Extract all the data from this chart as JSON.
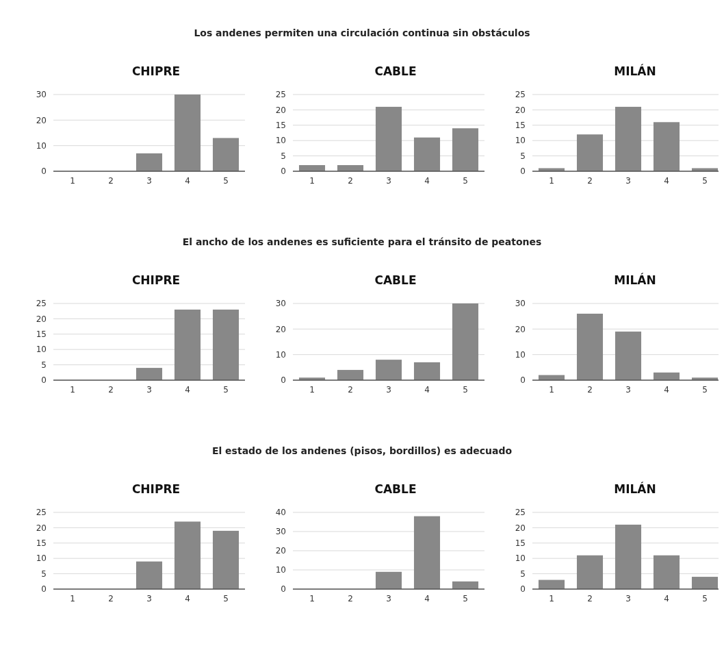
{
  "chart_data": [
    {
      "type": "bar",
      "title": "CHIPRE",
      "annotations": [
        "Los andenes permiten una circulación continua sin obstáculos"
      ],
      "categories": [
        "1",
        "2",
        "3",
        "4",
        "5"
      ],
      "values": [
        0,
        0,
        7,
        30,
        13
      ],
      "color": "#888888",
      "ylim": [
        0,
        30
      ],
      "yticks": [
        0,
        10,
        20,
        30
      ],
      "grid": "y"
    },
    {
      "type": "bar",
      "title": "CABLE",
      "categories": [
        "1",
        "2",
        "3",
        "4",
        "5"
      ],
      "values": [
        2,
        2,
        21,
        11,
        14
      ],
      "color": "#888888",
      "ylim": [
        0,
        25
      ],
      "yticks": [
        0,
        5,
        10,
        15,
        20,
        25
      ],
      "grid": "y"
    },
    {
      "type": "bar",
      "title": "MILÁN",
      "categories": [
        "1",
        "2",
        "3",
        "4",
        "5"
      ],
      "values": [
        1,
        12,
        21,
        16,
        1
      ],
      "color": "#888888",
      "ylim": [
        0,
        25
      ],
      "yticks": [
        0,
        5,
        10,
        15,
        20,
        25
      ],
      "grid": "y"
    },
    {
      "type": "bar",
      "title": "CHIPRE",
      "annotations": [
        "El ancho de los andenes es suficiente para el tránsito de peatones"
      ],
      "categories": [
        "1",
        "2",
        "3",
        "4",
        "5"
      ],
      "values": [
        0,
        0,
        4,
        23,
        23
      ],
      "color": "#888888",
      "ylim": [
        0,
        25
      ],
      "yticks": [
        0,
        5,
        10,
        15,
        20,
        25
      ],
      "grid": "y"
    },
    {
      "type": "bar",
      "title": "CABLE",
      "categories": [
        "1",
        "2",
        "3",
        "4",
        "5"
      ],
      "values": [
        1,
        4,
        8,
        7,
        30
      ],
      "color": "#888888",
      "ylim": [
        0,
        30
      ],
      "yticks": [
        0,
        10,
        20,
        30
      ],
      "grid": "y"
    },
    {
      "type": "bar",
      "title": "MILÁN",
      "categories": [
        "1",
        "2",
        "3",
        "4",
        "5"
      ],
      "values": [
        2,
        26,
        19,
        3,
        1
      ],
      "color": "#888888",
      "ylim": [
        0,
        30
      ],
      "yticks": [
        0,
        10,
        20,
        30
      ],
      "grid": "y"
    },
    {
      "type": "bar",
      "title": "CHIPRE",
      "annotations": [
        "El estado de los andenes (pisos, bordillos) es adecuado"
      ],
      "categories": [
        "1",
        "2",
        "3",
        "4",
        "5"
      ],
      "values": [
        0,
        0,
        9,
        22,
        19
      ],
      "color": "#888888",
      "ylim": [
        0,
        25
      ],
      "yticks": [
        0,
        5,
        10,
        15,
        20,
        25
      ],
      "grid": "y"
    },
    {
      "type": "bar",
      "title": "CABLE",
      "categories": [
        "1",
        "2",
        "3",
        "4",
        "5"
      ],
      "values": [
        0,
        0,
        9,
        38,
        4
      ],
      "color": "#888888",
      "ylim": [
        0,
        40
      ],
      "yticks": [
        0,
        10,
        20,
        30,
        40
      ],
      "grid": "y"
    },
    {
      "type": "bar",
      "title": "MILÁN",
      "categories": [
        "1",
        "2",
        "3",
        "4",
        "5"
      ],
      "values": [
        3,
        11,
        21,
        11,
        4
      ],
      "color": "#888888",
      "ylim": [
        0,
        25
      ],
      "yticks": [
        0,
        5,
        10,
        15,
        20,
        25
      ],
      "grid": "y"
    }
  ]
}
